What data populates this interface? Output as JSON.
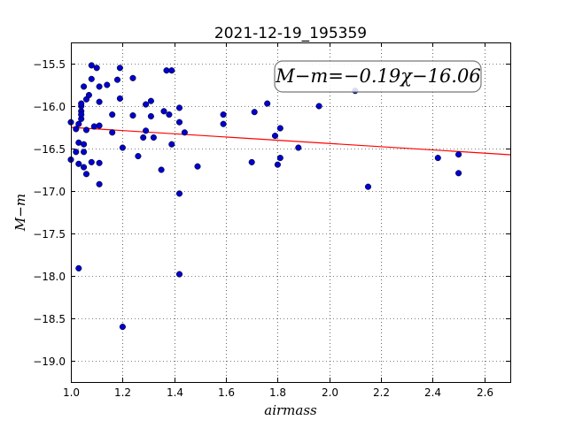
{
  "chart_data": {
    "type": "scatter",
    "title": "2021-12-19_195359",
    "xlabel": "airmass",
    "ylabel": "M−m",
    "xlim": [
      1.0,
      2.7
    ],
    "ylim": [
      -19.25,
      -15.25
    ],
    "y_inverted": true,
    "grid": true,
    "grid_style": "dotted",
    "x_ticks": [
      1.0,
      1.2,
      1.4,
      1.6,
      1.8,
      2.0,
      2.2,
      2.4,
      2.6
    ],
    "x_tick_labels": [
      "1.0",
      "1.2",
      "1.4",
      "1.6",
      "1.8",
      "2.0",
      "2.2",
      "2.4",
      "2.6"
    ],
    "y_ticks": [
      -15.5,
      -16.0,
      -16.5,
      -17.0,
      -17.5,
      -18.0,
      -18.5,
      -19.0
    ],
    "y_tick_labels": [
      "−15.5",
      "−16.0",
      "−16.5",
      "−17.0",
      "−17.5",
      "−18.0",
      "−18.5",
      "−19.0"
    ],
    "annotation": "M−m=−0.19χ−16.06",
    "fit_line": {
      "slope": -0.19,
      "intercept": -16.06,
      "color": "#ff0000"
    },
    "point_color": "#0000cc",
    "points": [
      [
        1.0,
        -16.19
      ],
      [
        1.0,
        -16.63
      ],
      [
        1.02,
        -16.27
      ],
      [
        1.02,
        -16.54
      ],
      [
        1.03,
        -16.68
      ],
      [
        1.03,
        -16.21
      ],
      [
        1.03,
        -16.43
      ],
      [
        1.03,
        -17.91
      ],
      [
        1.04,
        -16.15
      ],
      [
        1.04,
        -16.06
      ],
      [
        1.04,
        -16.0
      ],
      [
        1.04,
        -15.97
      ],
      [
        1.04,
        -16.1
      ],
      [
        1.05,
        -15.77
      ],
      [
        1.05,
        -16.54
      ],
      [
        1.05,
        -16.45
      ],
      [
        1.05,
        -16.72
      ],
      [
        1.06,
        -15.92
      ],
      [
        1.06,
        -16.8
      ],
      [
        1.06,
        -16.28
      ],
      [
        1.07,
        -15.87
      ],
      [
        1.08,
        -16.66
      ],
      [
        1.08,
        -15.52
      ],
      [
        1.09,
        -16.24
      ],
      [
        1.08,
        -15.68
      ],
      [
        1.1,
        -15.55
      ],
      [
        1.11,
        -16.23
      ],
      [
        1.11,
        -15.95
      ],
      [
        1.11,
        -15.77
      ],
      [
        1.11,
        -16.67
      ],
      [
        1.11,
        -16.92
      ],
      [
        1.14,
        -15.75
      ],
      [
        1.16,
        -16.1
      ],
      [
        1.16,
        -16.31
      ],
      [
        1.18,
        -15.69
      ],
      [
        1.19,
        -15.55
      ],
      [
        1.19,
        -15.91
      ],
      [
        1.2,
        -16.49
      ],
      [
        1.2,
        -18.6
      ],
      [
        1.24,
        -15.67
      ],
      [
        1.24,
        -16.11
      ],
      [
        1.26,
        -16.59
      ],
      [
        1.28,
        -16.37
      ],
      [
        1.29,
        -15.98
      ],
      [
        1.29,
        -16.29
      ],
      [
        1.31,
        -16.12
      ],
      [
        1.31,
        -15.94
      ],
      [
        1.32,
        -16.37
      ],
      [
        1.35,
        -16.75
      ],
      [
        1.36,
        -16.06
      ],
      [
        1.37,
        -15.58
      ],
      [
        1.38,
        -16.1
      ],
      [
        1.39,
        -16.45
      ],
      [
        1.39,
        -15.58
      ],
      [
        1.42,
        -16.02
      ],
      [
        1.42,
        -16.19
      ],
      [
        1.42,
        -17.03
      ],
      [
        1.42,
        -17.98
      ],
      [
        1.44,
        -16.31
      ],
      [
        1.49,
        -16.71
      ],
      [
        1.59,
        -16.1
      ],
      [
        1.59,
        -16.21
      ],
      [
        1.7,
        -16.66
      ],
      [
        1.71,
        -16.07
      ],
      [
        1.76,
        -15.97
      ],
      [
        1.79,
        -16.35
      ],
      [
        1.8,
        -16.69
      ],
      [
        1.81,
        -16.26
      ],
      [
        1.81,
        -16.61
      ],
      [
        1.88,
        -16.49
      ],
      [
        1.96,
        -16.0
      ],
      [
        2.1,
        -15.82
      ],
      [
        2.15,
        -16.95
      ],
      [
        2.42,
        -16.61
      ],
      [
        2.5,
        -16.57
      ],
      [
        2.5,
        -16.79
      ]
    ]
  }
}
